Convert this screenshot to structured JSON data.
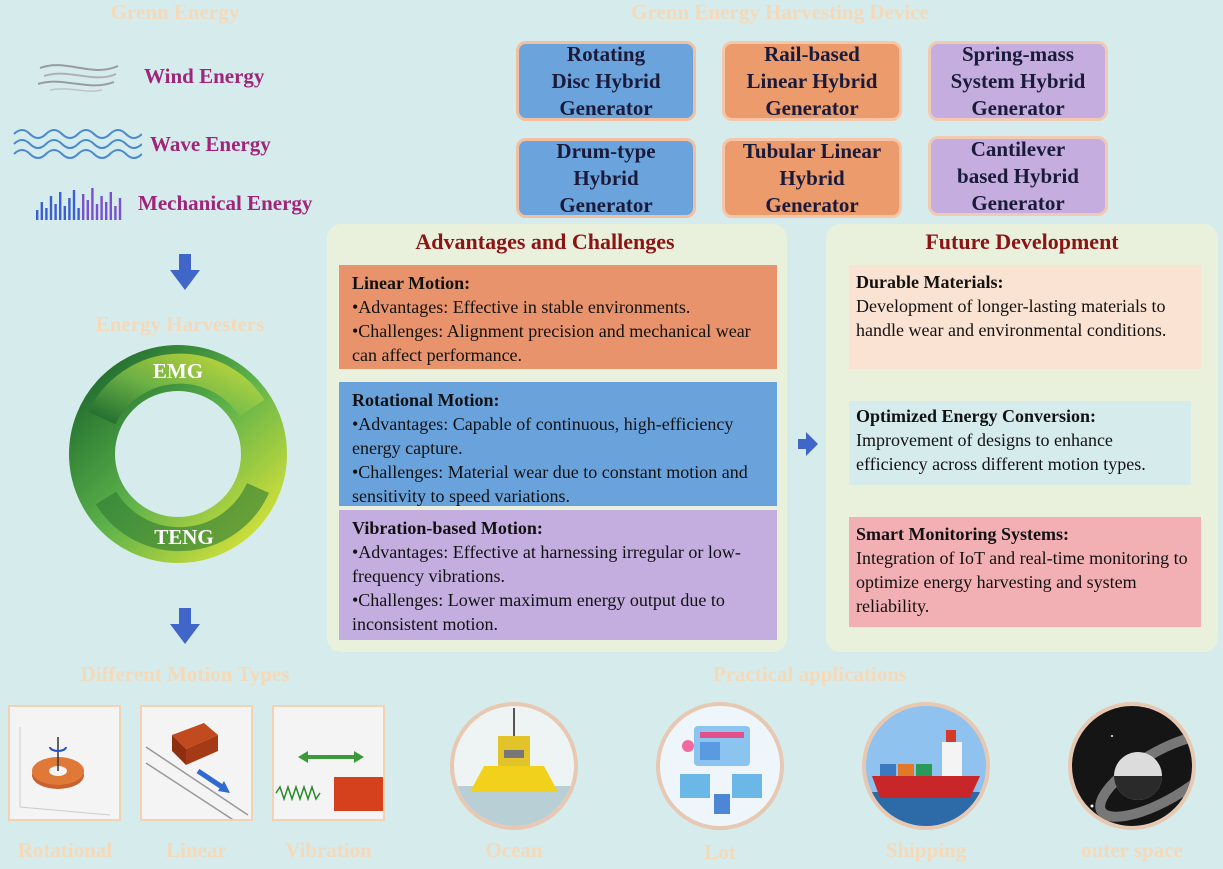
{
  "titles": {
    "green_energy": "Grenn Energy",
    "device": "Grenn Energy Harvesting Device",
    "harvesters": "Energy Harvesters",
    "motion_types": "Different Motion Types",
    "applications": "Practical applications"
  },
  "sources": [
    {
      "label": "Wind Energy",
      "icon": "wind-icon"
    },
    {
      "label": "Wave Energy",
      "icon": "wave-icon"
    },
    {
      "label": "Mechanical Energy",
      "icon": "vibration-bars-icon"
    }
  ],
  "ring": {
    "top_label": "EMG",
    "bottom_label": "TENG"
  },
  "devices": [
    {
      "lines": [
        "Rotating",
        "Disc Hybrid",
        "Generator"
      ],
      "color": "#6ba4dc"
    },
    {
      "lines": [
        "Rail-based",
        "Linear Hybrid",
        "Generator"
      ],
      "color": "#eb9b6c"
    },
    {
      "lines": [
        "Spring-mass",
        "System Hybrid",
        "Generator"
      ],
      "color": "#c5aedf"
    },
    {
      "lines": [
        "Drum-type",
        "Hybrid",
        "Generator"
      ],
      "color": "#6ba4dc"
    },
    {
      "lines": [
        "Tubular Linear",
        "Hybrid",
        "Generator"
      ],
      "color": "#eb9b6c"
    },
    {
      "lines": [
        "Cantilever",
        "based Hybrid",
        "Generator"
      ],
      "color": "#c5aedf"
    }
  ],
  "advantages": {
    "title": "Advantages and Challenges",
    "linear": {
      "heading": "Linear Motion:",
      "adv": "•Advantages: Effective in stable environments.",
      "chal": "•Challenges: Alignment precision and mechanical wear can affect performance."
    },
    "rotational": {
      "heading": "Rotational Motion:",
      "adv": "•Advantages: Capable of continuous, high-efficiency energy capture.",
      "chal": "•Challenges: Material wear due to constant motion and sensitivity to speed variations."
    },
    "vibration": {
      "heading": "Vibration-based Motion:",
      "adv": "•Advantages: Effective at harnessing irregular or low-frequency vibrations.",
      "chal": "•Challenges: Lower maximum energy output due to inconsistent motion."
    }
  },
  "future": {
    "title": "Future Development",
    "durable": {
      "heading": "Durable Materials:",
      "text": "Development of longer-lasting materials to handle wear and environmental conditions."
    },
    "optimized": {
      "heading": "Optimized Energy Conversion:",
      "text": "Improvement of designs to enhance efficiency across different motion types."
    },
    "smart": {
      "heading": "Smart Monitoring Systems:",
      "text": "Integration of IoT and real-time monitoring to optimize energy harvesting and system reliability."
    }
  },
  "motions": [
    "Rotational",
    "Linear",
    "Vibration"
  ],
  "applications": [
    "Ocean",
    "Lot",
    "Shipping",
    "outer space"
  ],
  "colors": {
    "background": "#d6ecec",
    "blue_box": "#6ba4dc",
    "orange_box": "#eb9b6c",
    "purple_box": "#c5aedf",
    "panel_title": "#8b1414",
    "source_label": "#a0257a",
    "faint_title": "#f5d9b8",
    "arrow": "#3f66c8"
  }
}
